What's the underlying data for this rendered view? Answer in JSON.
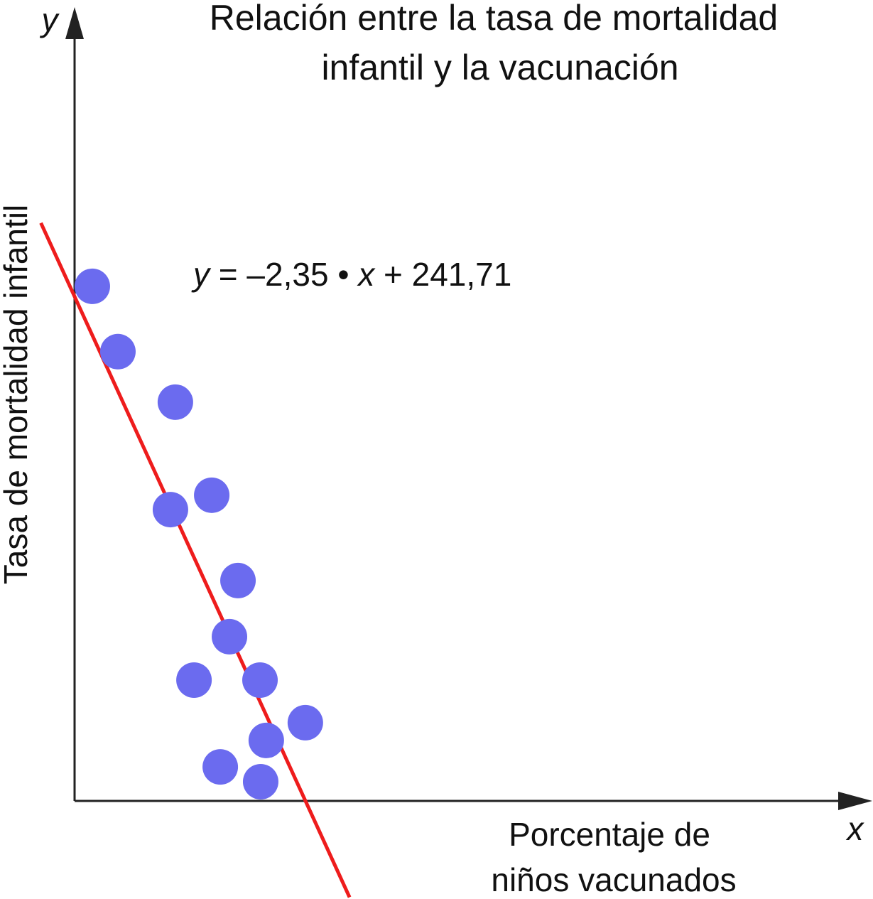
{
  "chart_data": {
    "type": "scatter",
    "title": [
      "Relación entre la tasa de mortalidad",
      "infantil y la vacunación"
    ],
    "x_axis_symbol": "x",
    "y_axis_symbol": "y",
    "x_label": [
      "Porcentaje de",
      "niños vacunados"
    ],
    "y_label": "Tasa de mortalidad infantil",
    "xlim": [
      0,
      350
    ],
    "ylim": [
      0,
      377
    ],
    "x": [
      7.9,
      19.3,
      44.9,
      61.1,
      42.7,
      72.8,
      69.0,
      53.2,
      82.6,
      102.8,
      85.4,
      64.9,
      82.9
    ],
    "values": [
      246.6,
      215.3,
      191.1,
      146.5,
      139.6,
      105.6,
      78.7,
      57.9,
      57.9,
      37.5,
      29.0,
      16.3,
      9.2
    ],
    "color": "#6b6bef",
    "fit": {
      "slope": -2.35,
      "intercept": 241.71,
      "x_range": [
        -15,
        122.5
      ],
      "color": "#ee1c1c",
      "equation": [
        "y",
        " = –2,35 • ",
        "x",
        " + 241,71"
      ]
    }
  }
}
